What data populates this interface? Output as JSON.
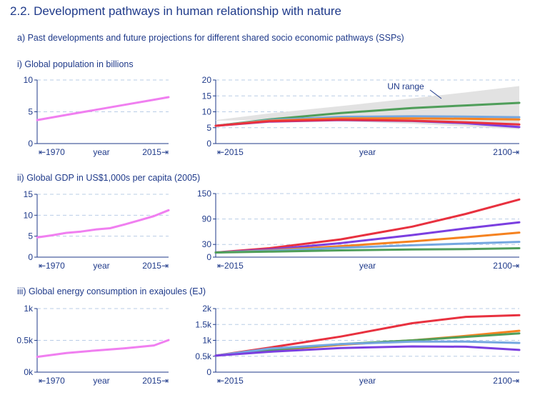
{
  "header": {
    "title": "2.2. Development pathways in human relationship with nature",
    "subtitle": "a)  Past developments and future projections for different shared socio economic pathways (SSPs)"
  },
  "colors": {
    "text": "#1f3a8a",
    "grid": "#b9cde6",
    "historic": "#f07ff0",
    "ssp_red": "#e8313f",
    "ssp_purple": "#7b3fe0",
    "ssp_orange": "#f58220",
    "ssp_lightblue": "#75a7e0",
    "ssp_green": "#4f9e5a",
    "un_range": "#e2e2e2"
  },
  "chart_data": [
    {
      "id": "pop-hist",
      "row_label": "i)   Global population in billions",
      "type": "line",
      "ylim": [
        0,
        10
      ],
      "yticks": [
        "0",
        "5",
        "10"
      ],
      "ytick_values": [
        0,
        5,
        10
      ],
      "xlim": [
        1970,
        2015
      ],
      "xlabel": "year",
      "x_start_label": "1970",
      "x_end_label": "2015",
      "series": [
        {
          "x": [
            1970,
            1980,
            1990,
            2000,
            2010,
            2015
          ],
          "values": [
            3.7,
            4.5,
            5.3,
            6.1,
            6.9,
            7.3
          ]
        }
      ]
    },
    {
      "id": "pop-proj",
      "type": "line",
      "ylim": [
        0,
        20
      ],
      "yticks": [
        "0",
        "5",
        "10",
        "15",
        "20"
      ],
      "ytick_values": [
        0,
        5,
        10,
        15,
        20
      ],
      "xlim": [
        2015,
        2100
      ],
      "xlabel": "year",
      "x_start_label": "2015",
      "x_end_label": "2100",
      "annotation": "UN range",
      "band": {
        "x": [
          2015,
          2030,
          2050,
          2070,
          2085,
          2100
        ],
        "upper": [
          7.4,
          9.5,
          11.8,
          14.2,
          16.1,
          18.1
        ],
        "lower": [
          7.2,
          7.5,
          7.0,
          6.2,
          5.4,
          4.5
        ]
      },
      "series": [
        {
          "color": "#4f9e5a",
          "x": [
            2015,
            2030,
            2050,
            2070,
            2085,
            2100
          ],
          "values": [
            5.6,
            7.6,
            9.6,
            11.2,
            12.0,
            12.8
          ]
        },
        {
          "color": "#75a7e0",
          "x": [
            2015,
            2030,
            2050,
            2070,
            2085,
            2100
          ],
          "values": [
            5.6,
            7.4,
            8.4,
            8.6,
            8.5,
            8.3
          ]
        },
        {
          "color": "#f58220",
          "x": [
            2015,
            2030,
            2050,
            2070,
            2085,
            2100
          ],
          "values": [
            5.6,
            7.2,
            7.9,
            7.9,
            7.8,
            7.6
          ]
        },
        {
          "color": "#7b3fe0",
          "x": [
            2015,
            2030,
            2050,
            2070,
            2085,
            2100
          ],
          "values": [
            5.6,
            6.9,
            7.4,
            7.1,
            6.4,
            5.2
          ]
        },
        {
          "color": "#e8313f",
          "x": [
            2015,
            2030,
            2050,
            2070,
            2085,
            2100
          ],
          "values": [
            5.6,
            7.0,
            7.5,
            7.2,
            6.7,
            6.0
          ]
        }
      ]
    },
    {
      "id": "gdp-hist",
      "row_label": "ii)  Global GDP in US$1,000s per capita (2005)",
      "type": "line",
      "ylim": [
        0,
        15
      ],
      "yticks": [
        "0",
        "5",
        "10",
        "15"
      ],
      "ytick_values": [
        0,
        5,
        10,
        15
      ],
      "xlim": [
        1970,
        2015
      ],
      "xlabel": "year",
      "x_start_label": "1970",
      "x_end_label": "2015",
      "series": [
        {
          "x": [
            1970,
            1975,
            1980,
            1985,
            1990,
            1995,
            2000,
            2005,
            2010,
            2015
          ],
          "values": [
            4.7,
            5.2,
            5.8,
            6.1,
            6.6,
            6.9,
            7.8,
            8.8,
            9.8,
            11.2
          ]
        }
      ]
    },
    {
      "id": "gdp-proj",
      "type": "line",
      "ylim": [
        0,
        150
      ],
      "yticks": [
        "0",
        "30",
        "90",
        "150"
      ],
      "ytick_values": [
        0,
        30,
        90,
        150
      ],
      "xlim": [
        2015,
        2100
      ],
      "xlabel": "year",
      "x_start_label": "2015",
      "x_end_label": "2100",
      "series": [
        {
          "color": "#e8313f",
          "x": [
            2015,
            2030,
            2050,
            2070,
            2085,
            2100
          ],
          "values": [
            11,
            21,
            42,
            72,
            102,
            136
          ]
        },
        {
          "color": "#7b3fe0",
          "x": [
            2015,
            2030,
            2050,
            2070,
            2085,
            2100
          ],
          "values": [
            11,
            18,
            33,
            52,
            68,
            82
          ]
        },
        {
          "color": "#f58220",
          "x": [
            2015,
            2030,
            2050,
            2070,
            2085,
            2100
          ],
          "values": [
            11,
            16,
            26,
            37,
            47,
            58
          ]
        },
        {
          "color": "#75a7e0",
          "x": [
            2015,
            2030,
            2050,
            2070,
            2085,
            2100
          ],
          "values": [
            11,
            15,
            22,
            28,
            32,
            36
          ]
        },
        {
          "color": "#4f9e5a",
          "x": [
            2015,
            2030,
            2050,
            2070,
            2085,
            2100
          ],
          "values": [
            11,
            13,
            16,
            18,
            19,
            21
          ]
        }
      ]
    },
    {
      "id": "energy-hist",
      "row_label": "iii) Global energy consumption in exajoules (EJ)",
      "type": "line",
      "ylim": [
        0,
        1000
      ],
      "yticks": [
        "0k",
        "0.5k",
        "1k"
      ],
      "ytick_values": [
        0,
        500,
        1000
      ],
      "xlim": [
        1970,
        2015
      ],
      "xlabel": "year",
      "x_start_label": "1970",
      "x_end_label": "2015",
      "series": [
        {
          "x": [
            1970,
            1980,
            1990,
            2000,
            2010,
            2015
          ],
          "values": [
            240,
            300,
            340,
            375,
            420,
            505
          ]
        }
      ]
    },
    {
      "id": "energy-proj",
      "type": "line",
      "ylim": [
        0,
        2000
      ],
      "yticks": [
        "0",
        "0.5k",
        "1k",
        "1.5k",
        "2k"
      ],
      "ytick_values": [
        0,
        500,
        1000,
        1500,
        2000
      ],
      "xlim": [
        2015,
        2100
      ],
      "xlabel": "year",
      "x_start_label": "2015",
      "x_end_label": "2100",
      "series": [
        {
          "color": "#e8313f",
          "x": [
            2015,
            2030,
            2050,
            2070,
            2085,
            2100
          ],
          "values": [
            520,
            770,
            1120,
            1540,
            1740,
            1790
          ]
        },
        {
          "color": "#f58220",
          "x": [
            2015,
            2030,
            2050,
            2070,
            2085,
            2100
          ],
          "values": [
            520,
            680,
            860,
            1000,
            1140,
            1300
          ]
        },
        {
          "color": "#4f9e5a",
          "x": [
            2015,
            2030,
            2050,
            2070,
            2085,
            2100
          ],
          "values": [
            520,
            700,
            880,
            1000,
            1110,
            1220
          ]
        },
        {
          "color": "#75a7e0",
          "x": [
            2015,
            2030,
            2050,
            2070,
            2085,
            2100
          ],
          "values": [
            520,
            740,
            880,
            960,
            960,
            920
          ]
        },
        {
          "color": "#7b3fe0",
          "x": [
            2015,
            2030,
            2050,
            2070,
            2085,
            2100
          ],
          "values": [
            520,
            640,
            760,
            810,
            800,
            700
          ]
        }
      ]
    }
  ]
}
